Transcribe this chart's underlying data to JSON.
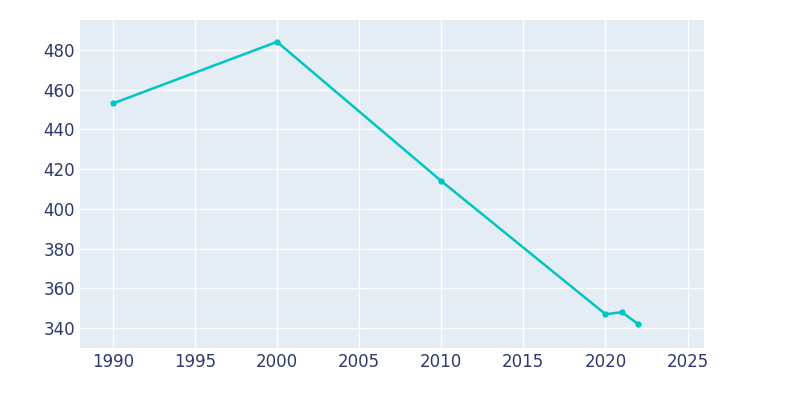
{
  "years": [
    1990,
    2000,
    2010,
    2020,
    2021,
    2022
  ],
  "population": [
    453,
    484,
    414,
    347,
    348,
    342
  ],
  "line_color": "#00C5C5",
  "marker": "o",
  "marker_size": 3.5,
  "line_width": 1.8,
  "background_color": "#E8EEF4",
  "plot_background_color": "#E4ECF4",
  "grid_color": "#FFFFFF",
  "xlim": [
    1988,
    2026
  ],
  "ylim": [
    330,
    495
  ],
  "yticks": [
    340,
    360,
    380,
    400,
    420,
    440,
    460,
    480
  ],
  "xticks": [
    1990,
    1995,
    2000,
    2005,
    2010,
    2015,
    2020,
    2025
  ],
  "tick_color": "#2D3A6B",
  "tick_fontsize": 12
}
